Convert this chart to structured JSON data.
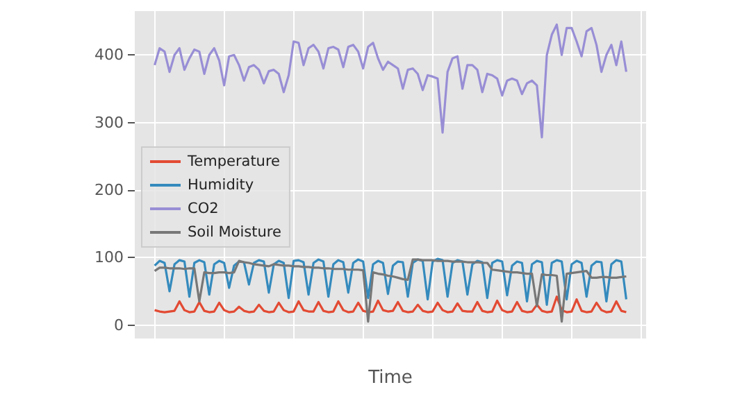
{
  "chart_data": {
    "type": "line",
    "xlabel": "Time",
    "categories": [
      null,
      null,
      null,
      null,
      null,
      null,
      null,
      null,
      null,
      null,
      null,
      null,
      null,
      null,
      null,
      null,
      null,
      null,
      null,
      null,
      null,
      null,
      null,
      null,
      null,
      null,
      null,
      null,
      null,
      null,
      null,
      null,
      null,
      null,
      null,
      null,
      null,
      null,
      null,
      null,
      null,
      null,
      null,
      null,
      null,
      null,
      null,
      null,
      null,
      null,
      null,
      null,
      null,
      null,
      null,
      null,
      null,
      null,
      null,
      null,
      null,
      null,
      null,
      null,
      null,
      null,
      null,
      null,
      null,
      null,
      null,
      null,
      null,
      null,
      null,
      null,
      null,
      null,
      null,
      null,
      null,
      null,
      null,
      null,
      null,
      null,
      null,
      null,
      null,
      null,
      null,
      null,
      null,
      null,
      null,
      null
    ],
    "series": [
      {
        "name": "Temperature",
        "color": "#e24a33",
        "values": [
          22,
          20,
          19,
          20,
          21,
          35,
          22,
          19,
          20,
          34,
          21,
          19,
          20,
          33,
          22,
          19,
          20,
          27,
          21,
          19,
          20,
          30,
          21,
          19,
          20,
          33,
          22,
          19,
          20,
          35,
          22,
          20,
          20,
          34,
          21,
          19,
          20,
          35,
          22,
          19,
          20,
          33,
          21,
          19,
          20,
          36,
          22,
          20,
          21,
          34,
          21,
          19,
          20,
          30,
          21,
          19,
          20,
          33,
          22,
          19,
          20,
          32,
          21,
          20,
          20,
          34,
          21,
          19,
          20,
          36,
          22,
          19,
          20,
          34,
          21,
          19,
          20,
          30,
          21,
          19,
          20,
          42,
          22,
          19,
          20,
          38,
          21,
          19,
          20,
          33,
          22,
          19,
          20,
          35,
          21,
          19
        ]
      },
      {
        "name": "Humidity",
        "color": "#348abd",
        "values": [
          88,
          95,
          92,
          50,
          90,
          96,
          94,
          42,
          92,
          96,
          93,
          45,
          90,
          95,
          92,
          55,
          88,
          94,
          93,
          60,
          92,
          96,
          94,
          48,
          90,
          95,
          92,
          40,
          95,
          96,
          93,
          45,
          92,
          97,
          94,
          42,
          90,
          96,
          93,
          48,
          92,
          97,
          94,
          40,
          90,
          95,
          92,
          46,
          88,
          94,
          93,
          42,
          92,
          97,
          95,
          38,
          94,
          98,
          96,
          42,
          92,
          96,
          94,
          45,
          90,
          95,
          93,
          40,
          92,
          96,
          94,
          44,
          88,
          94,
          92,
          35,
          90,
          95,
          93,
          30,
          92,
          96,
          94,
          38,
          90,
          95,
          92,
          42,
          88,
          94,
          93,
          35,
          90,
          96,
          94,
          38
        ]
      },
      {
        "name": "CO2",
        "color": "#988ed5",
        "values": [
          385,
          410,
          405,
          375,
          400,
          410,
          378,
          395,
          408,
          405,
          372,
          400,
          410,
          392,
          355,
          398,
          400,
          385,
          362,
          382,
          385,
          378,
          358,
          376,
          378,
          372,
          345,
          370,
          420,
          418,
          385,
          410,
          415,
          405,
          380,
          410,
          412,
          408,
          382,
          412,
          415,
          405,
          380,
          412,
          418,
          395,
          378,
          390,
          385,
          380,
          350,
          378,
          380,
          372,
          348,
          370,
          368,
          365,
          285,
          375,
          395,
          398,
          350,
          385,
          385,
          378,
          345,
          372,
          370,
          365,
          340,
          362,
          365,
          362,
          342,
          358,
          362,
          355,
          278,
          400,
          430,
          445,
          400,
          440,
          440,
          420,
          398,
          435,
          440,
          415,
          375,
          400,
          415,
          385,
          420,
          375
        ]
      },
      {
        "name": "Soil Moisture",
        "color": "#777777",
        "values": [
          80,
          85,
          85,
          84,
          84,
          84,
          83,
          84,
          84,
          35,
          78,
          77,
          77,
          78,
          78,
          77,
          78,
          95,
          93,
          92,
          90,
          89,
          88,
          87,
          90,
          89,
          88,
          88,
          87,
          87,
          86,
          86,
          85,
          85,
          84,
          84,
          83,
          83,
          83,
          82,
          82,
          82,
          81,
          5,
          78,
          76,
          75,
          73,
          72,
          70,
          68,
          67,
          97,
          97,
          96,
          96,
          96,
          95,
          95,
          95,
          94,
          94,
          94,
          93,
          93,
          93,
          92,
          92,
          82,
          81,
          80,
          79,
          78,
          78,
          77,
          76,
          76,
          28,
          75,
          74,
          74,
          73,
          5,
          76,
          77,
          78,
          79,
          80,
          70,
          70,
          71,
          71,
          70,
          70,
          71,
          72
        ]
      }
    ],
    "ylim": [
      -20,
      465
    ],
    "yticks": [
      0,
      100,
      200,
      300,
      400
    ],
    "grid": true,
    "legend": "left",
    "marker": "none",
    "line_style": "solid"
  }
}
